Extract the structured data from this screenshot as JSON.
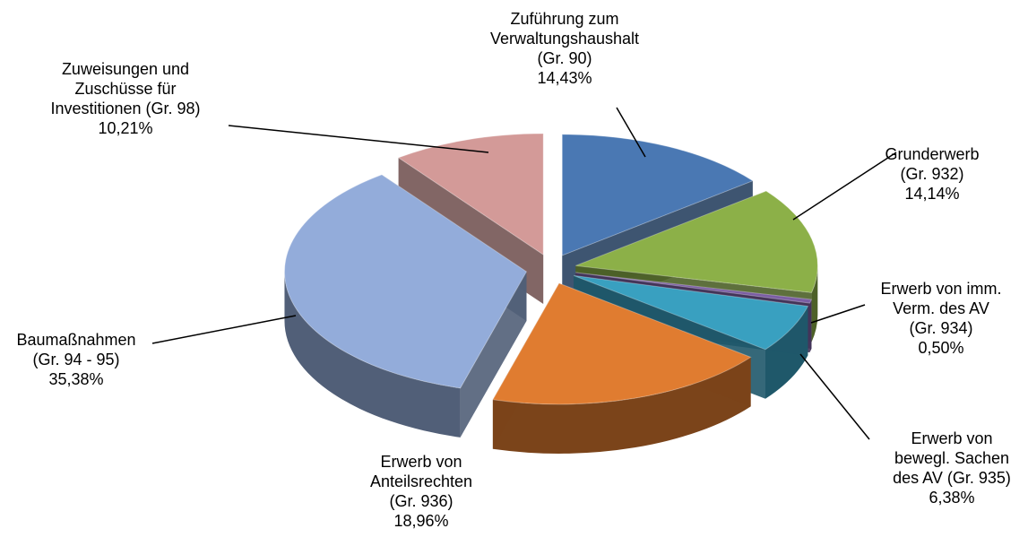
{
  "chart_data": {
    "type": "pie",
    "categories": [
      [
        "Zuführung zum",
        "Verwaltungshaushalt",
        "(Gr. 90)"
      ],
      [
        "Grunderwerb",
        "(Gr. 932)"
      ],
      [
        "Erwerb von imm.",
        "Verm. des AV",
        "(Gr. 934)"
      ],
      [
        "Erwerb von",
        "bewegl. Sachen",
        "des AV (Gr. 935)"
      ],
      [
        "Erwerb von",
        "Anteilsrechten",
        "(Gr. 936)"
      ],
      [
        "Baumaßnahmen",
        "(Gr. 94 - 95)"
      ],
      [
        "Zuweisungen und",
        "Zuschüsse für",
        "Investitionen (Gr. 98)"
      ]
    ],
    "values": [
      14.43,
      14.14,
      0.5,
      6.38,
      18.96,
      35.38,
      10.21
    ],
    "value_labels": [
      "14,43%",
      "14,14%",
      "0,50%",
      "6,38%",
      "18,96%",
      "35,38%",
      "10,21%"
    ],
    "colors": [
      "#4a78b3",
      "#8cb048",
      "#7b5ea3",
      "#39a0c0",
      "#e07c30",
      "#93acda",
      "#d39a98"
    ]
  }
}
